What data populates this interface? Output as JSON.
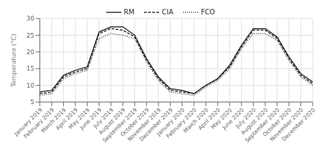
{
  "chart_data": {
    "type": "line",
    "categories": [
      "January 2019",
      "February 2019",
      "March 2019",
      "April 2019",
      "May 2019",
      "June 2019",
      "July 2019",
      "August 2019",
      "September 2019",
      "October 2019",
      "November 2019",
      "December 2019",
      "January 2020",
      "February 2020",
      "March 2020",
      "April 2020",
      "May 2020",
      "June 2020",
      "July 2020",
      "August 2020",
      "September 2020",
      "October 2020",
      "November 2020",
      "December 2020"
    ],
    "series": [
      {
        "name": "RM",
        "color": "#2a2a2a",
        "line_style": "solid",
        "values": [
          8.0,
          8.5,
          13.0,
          14.5,
          15.5,
          26.0,
          27.5,
          27.5,
          25.0,
          18.0,
          12.5,
          9.0,
          8.5,
          7.5,
          10.0,
          12.0,
          16.0,
          22.0,
          27.0,
          27.0,
          24.5,
          18.5,
          13.5,
          11.0
        ]
      },
      {
        "name": "CIA",
        "color": "#2a2a2a",
        "line_style": "dashed",
        "values": [
          7.5,
          8.0,
          12.5,
          14.0,
          15.0,
          25.5,
          27.0,
          26.5,
          24.5,
          17.5,
          12.0,
          8.5,
          8.0,
          7.5,
          10.0,
          12.0,
          15.5,
          21.5,
          26.5,
          26.5,
          24.0,
          18.0,
          13.0,
          10.5
        ]
      },
      {
        "name": "FCO",
        "color": "#2a2a2a",
        "line_style": "dotted",
        "values": [
          7.0,
          7.5,
          12.0,
          13.5,
          14.5,
          24.0,
          25.5,
          25.0,
          24.0,
          17.0,
          11.5,
          8.0,
          7.5,
          7.0,
          9.5,
          11.5,
          15.0,
          21.0,
          25.5,
          25.5,
          23.5,
          17.5,
          12.5,
          10.0
        ]
      }
    ],
    "ylabel": "Temperature (°C)",
    "ylim": [
      5,
      30
    ],
    "yticks": [
      5,
      10,
      15,
      20,
      25,
      30
    ],
    "grid": true,
    "legend": "top"
  }
}
